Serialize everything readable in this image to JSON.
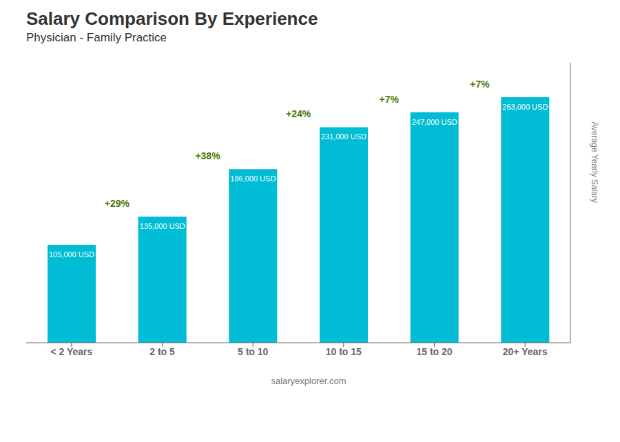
{
  "chart_data": {
    "type": "bar",
    "title": "Salary Comparison By Experience",
    "subtitle": "Physician - Family Practice",
    "ylabel": "Average Yearly Salary",
    "categories": [
      "< 2 Years",
      "2 to 5",
      "5 to 10",
      "10 to 15",
      "15 to 20",
      "20+ Years"
    ],
    "values": [
      105000,
      135000,
      186000,
      231000,
      247000,
      263000
    ],
    "value_labels": [
      "105,000 USD",
      "135,000 USD",
      "186,000 USD",
      "231,000 USD",
      "247,000 USD",
      "263,000 USD"
    ],
    "data_labels": true,
    "annotations": [
      "+29%",
      "+38%",
      "+24%",
      "+7%",
      "+7%"
    ],
    "footer": "salaryexplorer.com",
    "color": "#00bcd4",
    "ylim": [
      0,
      300000
    ],
    "grid": false,
    "tick_labels": "x"
  }
}
